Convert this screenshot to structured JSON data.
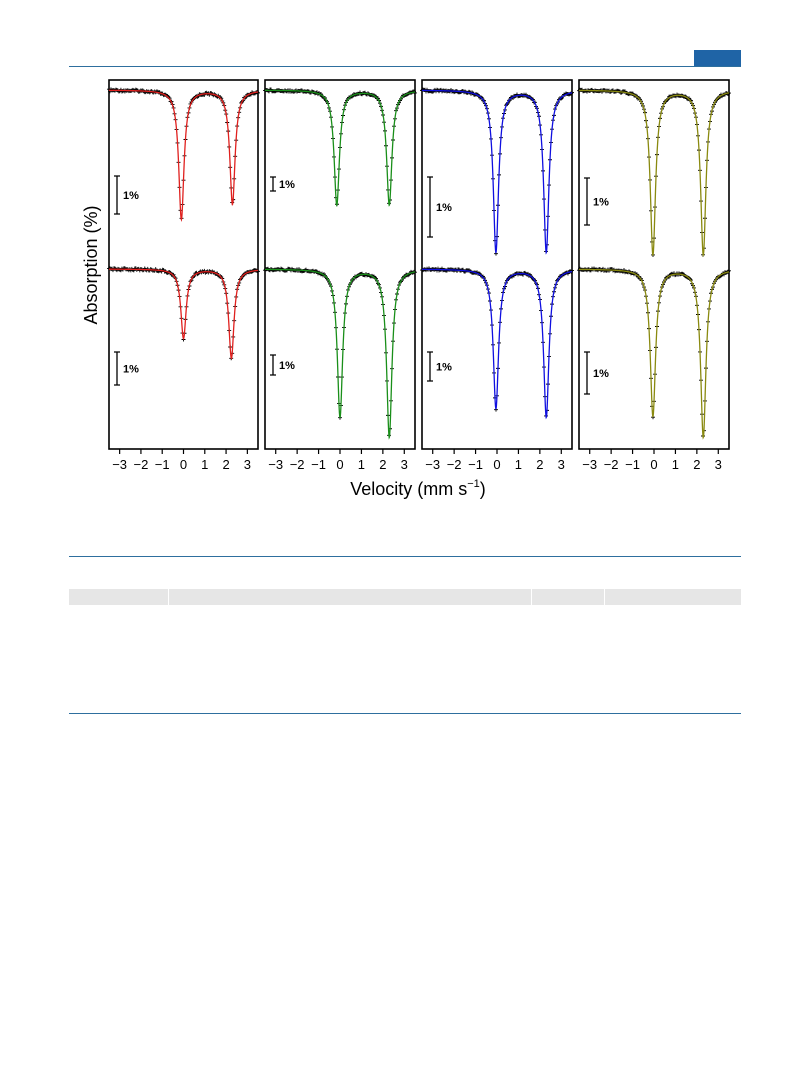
{
  "colors": {
    "panel_fits": [
      "#e0201e",
      "#1a8f1a",
      "#1010e0",
      "#8a8a10"
    ],
    "data_marker": "#000000",
    "rule": "#2e6f9e",
    "header_tab": "#1f64a6",
    "table_header_band": "#e6e6e6"
  },
  "chart_data": {
    "type": "line",
    "ylabel": "Absorption (%)",
    "xlabel_main": "Velocity (mm s",
    "xlabel_sup": "−1",
    "xlabel_close": ")",
    "xlim": [
      -3.5,
      3.5
    ],
    "xticks": [
      -3,
      -2,
      -1,
      0,
      1,
      2,
      3
    ],
    "xtick_labels": [
      "−3",
      "−2",
      "−1",
      "0",
      "1",
      "2",
      "3"
    ],
    "scale_bar_label": "1%",
    "panels": [
      {
        "fit_color": "#e0201e",
        "spectra": [
          {
            "row": "top",
            "peaks_mm_s": [
              -0.1,
              2.3
            ],
            "depths_percent": [
              3.4,
              3.0
            ],
            "hwhm_mm_s": 0.15,
            "scale_bar_percent": 1
          },
          {
            "row": "bottom",
            "peaks_mm_s": [
              0.0,
              2.25
            ],
            "depths_percent": [
              2.1,
              2.7
            ],
            "hwhm_mm_s": 0.15,
            "scale_bar_percent": 1
          }
        ]
      },
      {
        "fit_color": "#1a8f1a",
        "spectra": [
          {
            "row": "top",
            "peaks_mm_s": [
              -0.15,
              2.3
            ],
            "depths_percent": [
              8.2,
              8.2
            ],
            "hwhm_mm_s": 0.15,
            "scale_bar_percent": 1
          },
          {
            "row": "bottom",
            "peaks_mm_s": [
              0.0,
              2.3
            ],
            "depths_percent": [
              7.4,
              8.4
            ],
            "hwhm_mm_s": 0.15,
            "scale_bar_percent": 1
          }
        ]
      },
      {
        "fit_color": "#1010e0",
        "spectra": [
          {
            "row": "top",
            "peaks_mm_s": [
              -0.05,
              2.3
            ],
            "depths_percent": [
              2.7,
              2.7
            ],
            "hwhm_mm_s": 0.15,
            "scale_bar_percent": 1
          },
          {
            "row": "bottom",
            "peaks_mm_s": [
              -0.05,
              2.3
            ],
            "depths_percent": [
              4.8,
              5.1
            ],
            "hwhm_mm_s": 0.15,
            "scale_bar_percent": 1
          }
        ]
      },
      {
        "fit_color": "#8a8a10",
        "spectra": [
          {
            "row": "top",
            "peaks_mm_s": [
              -0.05,
              2.3
            ],
            "depths_percent": [
              3.5,
              3.5
            ],
            "hwhm_mm_s": 0.15,
            "scale_bar_percent": 1
          },
          {
            "row": "bottom",
            "peaks_mm_s": [
              -0.05,
              2.3
            ],
            "depths_percent": [
              3.5,
              4.0
            ],
            "hwhm_mm_s": 0.15,
            "scale_bar_percent": 1
          }
        ]
      }
    ],
    "grid": false,
    "legend": "none"
  }
}
